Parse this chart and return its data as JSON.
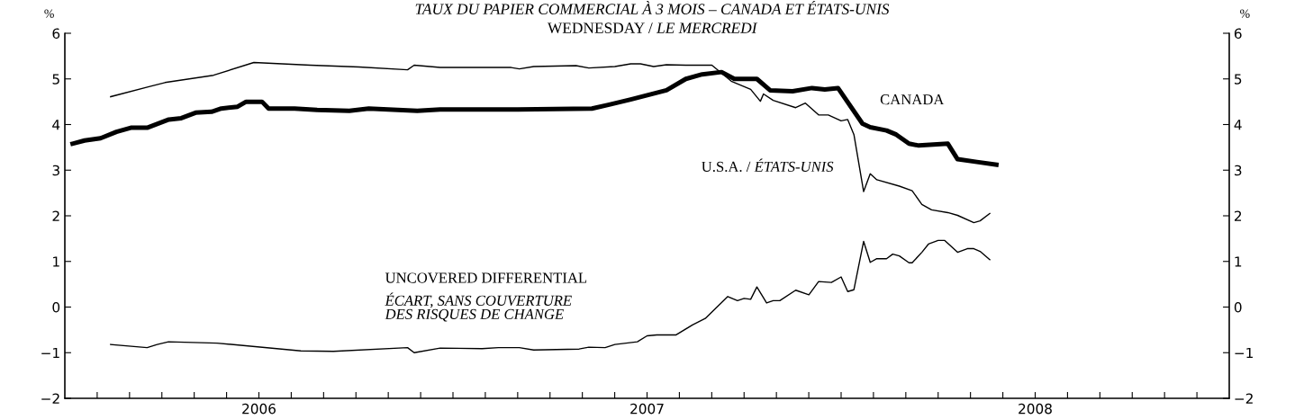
{
  "chart_data": {
    "type": "line",
    "title": "TAUX DU PAPIER COMMERCIAL À 3 MOIS – CANADA ET ÉTATS-UNIS",
    "subtitle": "WEDNESDAY / LE MERCREDI",
    "ylabel": "%",
    "y2label": "%",
    "xlim": [
      2006,
      2009
    ],
    "xticks": [
      {
        "value": 2006.0833,
        "label": null
      },
      {
        "value": 2006.1667,
        "label": null
      },
      {
        "value": 2006.25,
        "label": null
      },
      {
        "value": 2006.3333,
        "label": null
      },
      {
        "value": 2006.4167,
        "label": null
      },
      {
        "value": 2006.5,
        "label": "2006"
      },
      {
        "value": 2006.5833,
        "label": null
      },
      {
        "value": 2006.6667,
        "label": null
      },
      {
        "value": 2006.75,
        "label": null
      },
      {
        "value": 2006.8333,
        "label": null
      },
      {
        "value": 2006.9167,
        "label": null
      },
      {
        "value": 2007.0,
        "label": null
      },
      {
        "value": 2007.0833,
        "label": null
      },
      {
        "value": 2007.1667,
        "label": null
      },
      {
        "value": 2007.25,
        "label": null
      },
      {
        "value": 2007.3333,
        "label": null
      },
      {
        "value": 2007.4167,
        "label": null
      },
      {
        "value": 2007.5,
        "label": "2007"
      },
      {
        "value": 2007.5833,
        "label": null
      },
      {
        "value": 2007.6667,
        "label": null
      },
      {
        "value": 2007.75,
        "label": null
      },
      {
        "value": 2007.8333,
        "label": null
      },
      {
        "value": 2007.9167,
        "label": null
      },
      {
        "value": 2008.0,
        "label": null
      },
      {
        "value": 2008.0833,
        "label": null
      },
      {
        "value": 2008.1667,
        "label": null
      },
      {
        "value": 2008.25,
        "label": null
      },
      {
        "value": 2008.3333,
        "label": null
      },
      {
        "value": 2008.4167,
        "label": null
      },
      {
        "value": 2008.5,
        "label": "2008"
      },
      {
        "value": 2008.5833,
        "label": null
      },
      {
        "value": 2008.6667,
        "label": null
      },
      {
        "value": 2008.75,
        "label": null
      },
      {
        "value": 2008.8333,
        "label": null
      },
      {
        "value": 2008.9167,
        "label": null
      }
    ],
    "ylim": [
      -2,
      6
    ],
    "yticks": [
      -2,
      -1,
      0,
      1,
      2,
      3,
      4,
      5,
      6
    ],
    "y2lim": [
      -2,
      6
    ],
    "y2ticks": [
      -2,
      -1,
      0,
      1,
      2,
      3,
      4,
      5,
      6
    ],
    "grid": false,
    "legend": false,
    "marker": "none",
    "line_style": "solid",
    "series": [
      {
        "name": "CANADA",
        "color": "#000000",
        "x": [
          2006.02,
          2006.051,
          2006.092,
          2006.133,
          2006.17,
          2006.212,
          2006.268,
          2006.3,
          2006.337,
          2006.378,
          2006.403,
          2006.445,
          2006.467,
          2006.508,
          2006.525,
          2006.592,
          2006.65,
          2006.733,
          2006.783,
          2006.908,
          2006.967,
          2007.167,
          2007.358,
          2007.4,
          2007.458,
          2007.55,
          2007.6,
          2007.642,
          2007.692,
          2007.725,
          2007.783,
          2007.817,
          2007.875,
          2007.925,
          2007.958,
          2007.992,
          2008.055,
          2008.075,
          2008.117,
          2008.142,
          2008.175,
          2008.2,
          2008.275,
          2008.3,
          2008.35,
          2008.4
        ],
        "values": [
          3.58,
          3.65,
          3.7,
          3.84,
          3.93,
          3.93,
          4.11,
          4.14,
          4.26,
          4.28,
          4.35,
          4.39,
          4.5,
          4.5,
          4.35,
          4.35,
          4.32,
          4.3,
          4.35,
          4.3,
          4.33,
          4.33,
          4.35,
          4.43,
          4.55,
          4.75,
          5.0,
          5.1,
          5.15,
          5.0,
          5.0,
          4.75,
          4.73,
          4.8,
          4.77,
          4.8,
          4.02,
          3.94,
          3.87,
          3.78,
          3.58,
          3.54,
          3.58,
          3.24,
          3.18,
          3.12
        ]
      },
      {
        "name": "U.S.A. / ÉTATS-UNIS",
        "color": "#000000",
        "x": [
          2006.118,
          2006.217,
          2006.258,
          2006.383,
          2006.487,
          2006.633,
          2006.758,
          2006.883,
          2006.9,
          2006.967,
          2007.15,
          2007.171,
          2007.208,
          2007.317,
          2007.35,
          2007.417,
          2007.458,
          2007.483,
          2007.517,
          2007.55,
          2007.6,
          2007.667,
          2007.717,
          2007.767,
          2007.792,
          2007.8,
          2007.825,
          2007.883,
          2007.908,
          2007.942,
          2007.967,
          2008.0,
          2008.017,
          2008.033,
          2008.058,
          2008.075,
          2008.092,
          2008.15,
          2008.183,
          2008.208,
          2008.233,
          2008.275,
          2008.3,
          2008.342,
          2008.358,
          2008.383
        ],
        "values": [
          4.61,
          4.83,
          4.92,
          5.08,
          5.36,
          5.3,
          5.26,
          5.2,
          5.3,
          5.25,
          5.25,
          5.22,
          5.27,
          5.29,
          5.24,
          5.27,
          5.33,
          5.33,
          5.27,
          5.31,
          5.3,
          5.3,
          4.95,
          4.77,
          4.51,
          4.67,
          4.53,
          4.37,
          4.47,
          4.21,
          4.21,
          4.08,
          4.11,
          3.78,
          2.53,
          2.92,
          2.79,
          2.65,
          2.55,
          2.25,
          2.13,
          2.07,
          2.01,
          1.85,
          1.89,
          2.05
        ]
      },
      {
        "name": "UNCOVERED DIFFERENTIAL\nÉCART, SANS COUVERTURE\nDES RISQUES DE CHANGE",
        "color": "#000000",
        "x": [
          2006.118,
          2006.212,
          2006.238,
          2006.267,
          2006.392,
          2006.608,
          2006.692,
          2006.883,
          2006.9,
          2006.967,
          2007.075,
          2007.117,
          2007.171,
          2007.208,
          2007.325,
          2007.35,
          2007.392,
          2007.417,
          2007.475,
          2007.5,
          2007.525,
          2007.575,
          2007.617,
          2007.65,
          2007.708,
          2007.733,
          2007.75,
          2007.767,
          2007.783,
          2007.808,
          2007.825,
          2007.842,
          2007.883,
          2007.917,
          2007.942,
          2007.975,
          2008.0,
          2008.017,
          2008.033,
          2008.058,
          2008.075,
          2008.092,
          2008.117,
          2008.133,
          2008.15,
          2008.175,
          2008.183,
          2008.208,
          2008.225,
          2008.25,
          2008.267,
          2008.3,
          2008.325,
          2008.342,
          2008.358,
          2008.383
        ],
        "values": [
          -0.82,
          -0.89,
          -0.82,
          -0.76,
          -0.79,
          -0.96,
          -0.97,
          -0.89,
          -1.0,
          -0.9,
          -0.91,
          -0.89,
          -0.89,
          -0.94,
          -0.92,
          -0.88,
          -0.89,
          -0.82,
          -0.76,
          -0.63,
          -0.61,
          -0.61,
          -0.39,
          -0.25,
          0.23,
          0.14,
          0.19,
          0.17,
          0.44,
          0.09,
          0.14,
          0.14,
          0.37,
          0.27,
          0.56,
          0.54,
          0.66,
          0.34,
          0.38,
          1.44,
          0.98,
          1.06,
          1.06,
          1.16,
          1.12,
          0.97,
          0.97,
          1.2,
          1.38,
          1.46,
          1.46,
          1.2,
          1.28,
          1.28,
          1.22,
          1.04
        ]
      }
    ]
  }
}
